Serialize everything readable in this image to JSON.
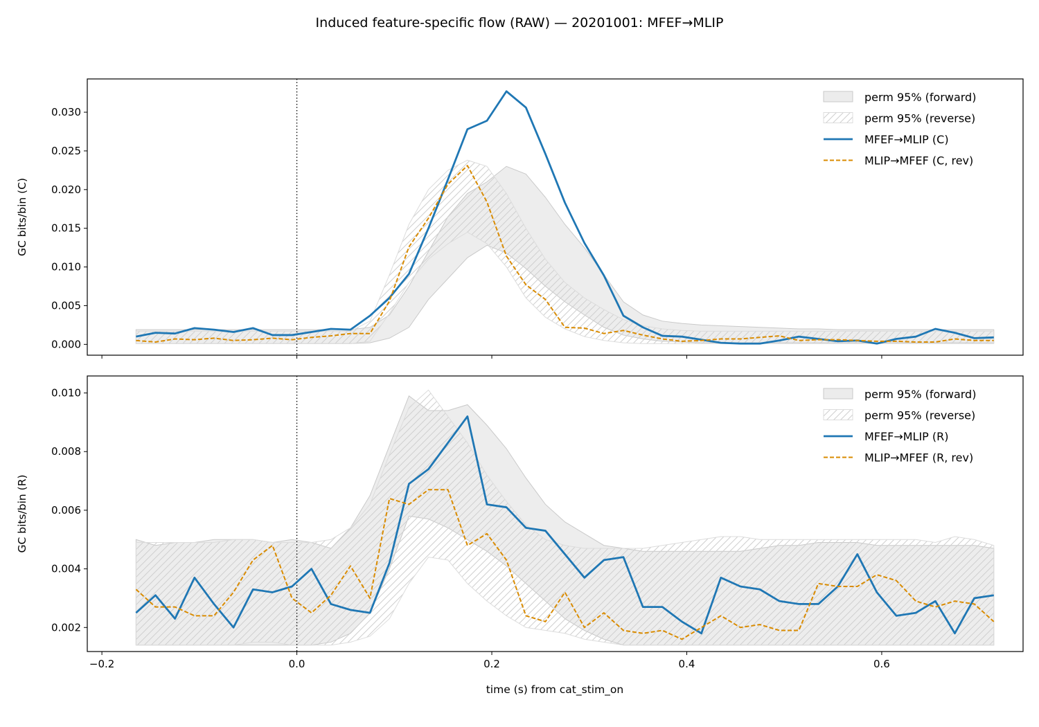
{
  "figure": {
    "title": "Induced feature-specific flow (RAW) — 20201001: MFEF→MLIP",
    "xlabel": "time (s) from cat_stim_on"
  },
  "colors": {
    "forward": "#1f77b4",
    "reverse": "#d98b00",
    "band": "#c9c9c9",
    "band_fill": "#ececec",
    "hatch": "#cfcfcf"
  },
  "chart_data": [
    {
      "type": "line",
      "id": "top",
      "ylabel": "GC bits/bin (C)",
      "xlim": [
        -0.215,
        0.745
      ],
      "ylim": [
        -0.0014,
        0.0343
      ],
      "xticks": [
        -0.2,
        0.0,
        0.2,
        0.4,
        0.6
      ],
      "yticks": [
        0.0,
        0.005,
        0.01,
        0.015,
        0.02,
        0.025,
        0.03
      ],
      "ytick_labels": [
        "0.000",
        "0.005",
        "0.010",
        "0.015",
        "0.020",
        "0.025",
        "0.030"
      ],
      "show_xtick_labels": false,
      "vline_x": 0.0,
      "legend_position": "top-right",
      "x": [
        -0.165,
        -0.145,
        -0.125,
        -0.105,
        -0.085,
        -0.065,
        -0.045,
        -0.025,
        -0.005,
        0.015,
        0.035,
        0.055,
        0.075,
        0.095,
        0.115,
        0.135,
        0.155,
        0.175,
        0.195,
        0.215,
        0.235,
        0.255,
        0.275,
        0.295,
        0.315,
        0.335,
        0.355,
        0.375,
        0.395,
        0.415,
        0.435,
        0.455,
        0.475,
        0.495,
        0.515,
        0.535,
        0.555,
        0.575,
        0.595,
        0.615,
        0.635,
        0.655,
        0.675,
        0.695,
        0.715
      ],
      "bands": [
        {
          "name": "perm 95% (forward)",
          "style": "fill",
          "lower": [
            0.0001,
            0.0001,
            0.0001,
            0.0001,
            0.0001,
            0.0001,
            0.0001,
            0.0001,
            0.0001,
            0.0001,
            0.0001,
            0.0001,
            0.0002,
            0.0008,
            0.0022,
            0.0058,
            0.0085,
            0.0112,
            0.0128,
            0.0118,
            0.0098,
            0.0075,
            0.0055,
            0.0038,
            0.0022,
            0.0012,
            0.0007,
            0.0004,
            0.0003,
            0.0002,
            0.0002,
            0.0002,
            0.0002,
            0.0002,
            0.0002,
            0.0002,
            0.0002,
            0.0002,
            0.0002,
            0.0002,
            0.0002,
            0.0002,
            0.0002,
            0.0002,
            0.0002
          ],
          "upper": [
            0.0019,
            0.0019,
            0.0019,
            0.0019,
            0.0019,
            0.0019,
            0.0019,
            0.0019,
            0.0019,
            0.0019,
            0.0019,
            0.0019,
            0.0022,
            0.0038,
            0.0075,
            0.012,
            0.0165,
            0.0195,
            0.021,
            0.023,
            0.022,
            0.019,
            0.0155,
            0.0125,
            0.009,
            0.0055,
            0.0038,
            0.003,
            0.0027,
            0.0025,
            0.0024,
            0.0023,
            0.0022,
            0.0021,
            0.002,
            0.002,
            0.0019,
            0.0019,
            0.0019,
            0.0019,
            0.0019,
            0.0019,
            0.0019,
            0.0019,
            0.0019
          ]
        },
        {
          "name": "perm 95% (reverse)",
          "style": "hatch",
          "lower": [
            0.0001,
            0.0001,
            0.0001,
            0.0001,
            0.0001,
            0.0001,
            0.0001,
            0.0001,
            0.0001,
            0.0001,
            0.0001,
            0.0001,
            0.0004,
            0.004,
            0.008,
            0.011,
            0.013,
            0.0145,
            0.013,
            0.01,
            0.006,
            0.0035,
            0.002,
            0.001,
            0.0005,
            0.0002,
            0.0001,
            0.0001,
            0.0001,
            0.0001,
            0.0001,
            0.0001,
            0.0001,
            0.0001,
            0.0001,
            0.0001,
            0.0001,
            0.0001,
            0.0001,
            0.0001,
            0.0001,
            0.0001,
            0.0001,
            0.0001,
            0.0001
          ],
          "upper": [
            0.0017,
            0.0017,
            0.0017,
            0.0017,
            0.0017,
            0.0017,
            0.0017,
            0.0017,
            0.0017,
            0.0017,
            0.0017,
            0.0017,
            0.003,
            0.009,
            0.0155,
            0.02,
            0.0225,
            0.0238,
            0.023,
            0.0195,
            0.015,
            0.011,
            0.008,
            0.006,
            0.0045,
            0.0032,
            0.0024,
            0.002,
            0.0018,
            0.0017,
            0.0017,
            0.0017,
            0.0017,
            0.0017,
            0.0017,
            0.0017,
            0.0017,
            0.0017,
            0.0017,
            0.0017,
            0.0017,
            0.0017,
            0.0017,
            0.0017,
            0.0017
          ]
        }
      ],
      "series": [
        {
          "name": "MFEF→MLIP (C)",
          "style": "solid",
          "values": [
            0.001,
            0.0015,
            0.0014,
            0.0021,
            0.0019,
            0.0016,
            0.0021,
            0.0012,
            0.0012,
            0.0016,
            0.002,
            0.0019,
            0.0037,
            0.006,
            0.0091,
            0.015,
            0.0213,
            0.0278,
            0.0289,
            0.0327,
            0.0306,
            0.0246,
            0.0183,
            0.0131,
            0.0089,
            0.0037,
            0.0022,
            0.0011,
            0.001,
            0.0006,
            0.0002,
            0.0001,
            0.0001,
            0.0005,
            0.001,
            0.0007,
            0.0004,
            0.0005,
            0.0001,
            0.0007,
            0.001,
            0.002,
            0.0015,
            0.0008,
            0.0009
          ]
        },
        {
          "name": "MLIP→MFEF (C, rev)",
          "style": "dashed",
          "values": [
            0.0005,
            0.0003,
            0.0007,
            0.0006,
            0.0008,
            0.0005,
            0.0006,
            0.0008,
            0.0006,
            0.0009,
            0.0011,
            0.0014,
            0.0014,
            0.0056,
            0.0126,
            0.0163,
            0.0207,
            0.0231,
            0.0184,
            0.0114,
            0.0077,
            0.0058,
            0.0022,
            0.0021,
            0.0014,
            0.0018,
            0.0012,
            0.0007,
            0.0004,
            0.0005,
            0.0007,
            0.0007,
            0.0009,
            0.0011,
            0.0005,
            0.0006,
            0.0006,
            0.0005,
            0.0004,
            0.0004,
            0.0003,
            0.0003,
            0.0007,
            0.0005,
            0.0005
          ]
        }
      ]
    },
    {
      "type": "line",
      "id": "bottom",
      "ylabel": "GC bits/bin (R)",
      "xlim": [
        -0.215,
        0.745
      ],
      "ylim": [
        0.00118,
        0.01058
      ],
      "xticks": [
        -0.2,
        0.0,
        0.2,
        0.4,
        0.6
      ],
      "xtick_labels": [
        "−0.2",
        "0.0",
        "0.2",
        "0.4",
        "0.6"
      ],
      "yticks": [
        0.002,
        0.004,
        0.006,
        0.008,
        0.01
      ],
      "ytick_labels": [
        "0.002",
        "0.004",
        "0.006",
        "0.008",
        "0.010"
      ],
      "show_xtick_labels": true,
      "vline_x": 0.0,
      "legend_position": "top-right",
      "x": [
        -0.165,
        -0.145,
        -0.125,
        -0.105,
        -0.085,
        -0.065,
        -0.045,
        -0.025,
        -0.005,
        0.015,
        0.035,
        0.055,
        0.075,
        0.095,
        0.115,
        0.135,
        0.155,
        0.175,
        0.195,
        0.215,
        0.235,
        0.255,
        0.275,
        0.295,
        0.315,
        0.335,
        0.355,
        0.375,
        0.395,
        0.415,
        0.435,
        0.455,
        0.475,
        0.495,
        0.515,
        0.535,
        0.555,
        0.575,
        0.595,
        0.615,
        0.635,
        0.655,
        0.675,
        0.695,
        0.715
      ],
      "bands": [
        {
          "name": "perm 95% (forward)",
          "style": "fill",
          "lower": [
            0.0014,
            0.0014,
            0.0014,
            0.0014,
            0.0014,
            0.0014,
            0.0014,
            0.0014,
            0.0014,
            0.0014,
            0.0015,
            0.0018,
            0.0025,
            0.004,
            0.0058,
            0.0057,
            0.0054,
            0.005,
            0.0046,
            0.0041,
            0.0035,
            0.0029,
            0.0023,
            0.0019,
            0.0016,
            0.0014,
            0.0014,
            0.0014,
            0.0014,
            0.0014,
            0.0014,
            0.0014,
            0.0014,
            0.0014,
            0.0014,
            0.0014,
            0.0014,
            0.0014,
            0.0014,
            0.0014,
            0.0014,
            0.0014,
            0.0014,
            0.0014,
            0.0014
          ],
          "upper": [
            0.005,
            0.0048,
            0.0049,
            0.0049,
            0.005,
            0.005,
            0.005,
            0.0049,
            0.005,
            0.0049,
            0.0047,
            0.0054,
            0.0065,
            0.0082,
            0.0099,
            0.0094,
            0.0094,
            0.0096,
            0.0089,
            0.0081,
            0.0071,
            0.0062,
            0.0056,
            0.0052,
            0.0048,
            0.0047,
            0.0046,
            0.0046,
            0.0046,
            0.0046,
            0.0046,
            0.0046,
            0.0047,
            0.0048,
            0.0048,
            0.0049,
            0.0049,
            0.0049,
            0.0048,
            0.0048,
            0.0048,
            0.0048,
            0.0048,
            0.0048,
            0.0047
          ]
        },
        {
          "name": "perm 95% (reverse)",
          "style": "hatch",
          "lower": [
            0.0014,
            0.0014,
            0.0014,
            0.0014,
            0.0014,
            0.0014,
            0.0015,
            0.0015,
            0.0014,
            0.0014,
            0.0014,
            0.0015,
            0.0017,
            0.0023,
            0.0035,
            0.0044,
            0.0043,
            0.0035,
            0.0029,
            0.0024,
            0.002,
            0.0019,
            0.0018,
            0.0016,
            0.0015,
            0.0014,
            0.0014,
            0.0014,
            0.0014,
            0.0014,
            0.0014,
            0.0014,
            0.0014,
            0.0014,
            0.0014,
            0.0014,
            0.0014,
            0.0014,
            0.0014,
            0.0014,
            0.0014,
            0.0014,
            0.0014,
            0.0014,
            0.0014
          ],
          "upper": [
            0.0049,
            0.0049,
            0.0049,
            0.0049,
            0.0049,
            0.005,
            0.005,
            0.0049,
            0.0049,
            0.0049,
            0.005,
            0.0054,
            0.0062,
            0.0079,
            0.0095,
            0.0101,
            0.0092,
            0.0083,
            0.0072,
            0.0063,
            0.0055,
            0.005,
            0.0048,
            0.0047,
            0.0047,
            0.0047,
            0.0047,
            0.0048,
            0.0049,
            0.005,
            0.0051,
            0.0051,
            0.005,
            0.005,
            0.005,
            0.005,
            0.005,
            0.005,
            0.005,
            0.005,
            0.005,
            0.0049,
            0.0051,
            0.005,
            0.0048
          ]
        }
      ],
      "series": [
        {
          "name": "MFEF→MLIP (R)",
          "style": "solid",
          "values": [
            0.0025,
            0.0031,
            0.0023,
            0.0037,
            0.0028,
            0.002,
            0.0033,
            0.0032,
            0.0034,
            0.004,
            0.0028,
            0.0026,
            0.0025,
            0.0042,
            0.0069,
            0.0074,
            0.0083,
            0.0092,
            0.0062,
            0.0061,
            0.0054,
            0.0053,
            0.0045,
            0.0037,
            0.0043,
            0.0044,
            0.0027,
            0.0027,
            0.0022,
            0.0018,
            0.0037,
            0.0034,
            0.0033,
            0.0029,
            0.0028,
            0.0028,
            0.0034,
            0.0045,
            0.0032,
            0.0024,
            0.0025,
            0.0029,
            0.0018,
            0.003,
            0.0031
          ]
        },
        {
          "name": "MLIP→MFEF (R, rev)",
          "style": "dashed",
          "values": [
            0.0033,
            0.0027,
            0.0027,
            0.0024,
            0.0024,
            0.0032,
            0.0043,
            0.0048,
            0.003,
            0.0025,
            0.0031,
            0.0041,
            0.003,
            0.0064,
            0.0062,
            0.0067,
            0.0067,
            0.0048,
            0.0052,
            0.0043,
            0.0024,
            0.0022,
            0.0032,
            0.002,
            0.0025,
            0.0019,
            0.0018,
            0.0019,
            0.0016,
            0.002,
            0.0024,
            0.002,
            0.0021,
            0.0019,
            0.0019,
            0.0035,
            0.0034,
            0.0034,
            0.0038,
            0.0036,
            0.0029,
            0.0027,
            0.0029,
            0.0028,
            0.0022
          ]
        }
      ]
    }
  ]
}
